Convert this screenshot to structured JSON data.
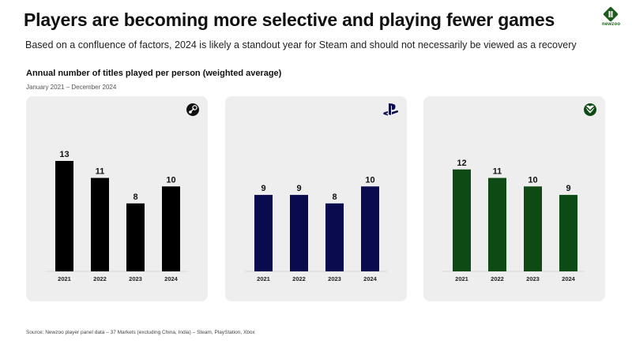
{
  "header": {
    "title": "Players are becoming more selective and playing fewer games",
    "subtitle": "Based on a confluence of factors, 2024 is likely a standout year for Steam and should not necessarily be viewed as a recovery"
  },
  "logo": {
    "text": "newzoo",
    "color": "#1f5a1f"
  },
  "chart_title": "Annual number of titles played per person (weighted average)",
  "date_range": "January 2021 – December 2024",
  "source": "Source: Newzoo player panel data – 37 Markets (excluding China, India) – Steam, PlayStation, Xbox",
  "colors": {
    "panel_bg": "#eeeeee",
    "axis": "#bbbbbb"
  },
  "chart_data": [
    {
      "type": "bar",
      "platform": "Steam",
      "icon": "steam-icon",
      "color": "#000000",
      "categories": [
        "2021",
        "2022",
        "2023",
        "2024"
      ],
      "values": [
        13,
        11,
        8,
        10
      ],
      "ylim": [
        0,
        14
      ]
    },
    {
      "type": "bar",
      "platform": "PlayStation",
      "icon": "playstation-icon",
      "color": "#0a0a4e",
      "categories": [
        "2021",
        "2022",
        "2023",
        "2024"
      ],
      "values": [
        9,
        9,
        8,
        10
      ],
      "ylim": [
        0,
        14
      ]
    },
    {
      "type": "bar",
      "platform": "Xbox",
      "icon": "xbox-icon",
      "color": "#0e4a14",
      "categories": [
        "2021",
        "2022",
        "2023",
        "2024"
      ],
      "values": [
        12,
        11,
        10,
        9
      ],
      "ylim": [
        0,
        14
      ]
    }
  ]
}
